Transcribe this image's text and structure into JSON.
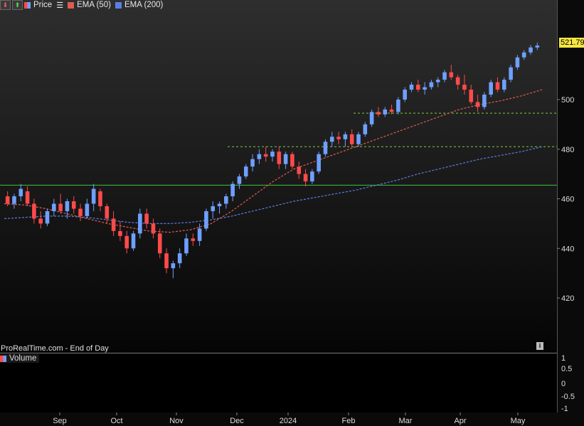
{
  "legend": {
    "price_label": "Price",
    "ema50_label": "EMA (50)",
    "ema200_label": "EMA (200)",
    "volume_label": "Volume"
  },
  "source_text": "ProRealTime.com - End of Day",
  "colors": {
    "up": "#6fa0ff",
    "down": "#ff4a4a",
    "ema50": "#e05a50",
    "ema200": "#5b7fe0",
    "support": "#7ccc3c",
    "resistance_green": "#3ec23e",
    "last_price_badge": "#f5e642"
  },
  "chart_data": {
    "type": "line",
    "subtype": "candlestick",
    "title": "",
    "x_tick_labels": [
      "Sep",
      "Oct",
      "Nov",
      "Dec",
      "2024",
      "Feb",
      "Mar",
      "Apr",
      "May"
    ],
    "y_tick_labels": [
      "420",
      "440",
      "460",
      "480",
      "500"
    ],
    "ylim": [
      415,
      530
    ],
    "last_price": "521.79",
    "volume_axis_labels": [
      "1",
      "0.5",
      "0",
      "-0.5",
      "-1"
    ],
    "horizontal_levels": [
      {
        "value": 465.5,
        "style": "solid",
        "start": "Aug",
        "end": "May"
      },
      {
        "value": 481,
        "style": "dashed",
        "start": "Dec",
        "end": "May"
      },
      {
        "value": 494.5,
        "style": "dashed",
        "start": "Feb",
        "end": "May"
      }
    ],
    "series": [
      {
        "name": "EMA (50)",
        "values": [
          458,
          457.5,
          456,
          454,
          452,
          450,
          448.5,
          447,
          446.5,
          447.5,
          450,
          455,
          461,
          467,
          472,
          475,
          478,
          481,
          484,
          487,
          490,
          493,
          496,
          498,
          499.5,
          501.5,
          504
        ]
      },
      {
        "name": "EMA (200)",
        "values": [
          452,
          452.5,
          453,
          453,
          452.5,
          451.5,
          450.5,
          450,
          450,
          450.5,
          451.5,
          453,
          455,
          457,
          459,
          460.5,
          462,
          463.5,
          465.5,
          467.5,
          470,
          472,
          474,
          476,
          477.5,
          479,
          481
        ]
      }
    ],
    "candles": [
      {
        "o": 461,
        "h": 463,
        "l": 457,
        "c": 458
      },
      {
        "o": 458,
        "h": 462,
        "l": 456,
        "c": 461
      },
      {
        "o": 461,
        "h": 466,
        "l": 459,
        "c": 464
      },
      {
        "o": 463,
        "h": 465,
        "l": 457,
        "c": 458
      },
      {
        "o": 458,
        "h": 460,
        "l": 450,
        "c": 452
      },
      {
        "o": 452,
        "h": 455,
        "l": 448,
        "c": 450
      },
      {
        "o": 450,
        "h": 456,
        "l": 449,
        "c": 455
      },
      {
        "o": 455,
        "h": 460,
        "l": 453,
        "c": 458
      },
      {
        "o": 458,
        "h": 462,
        "l": 454,
        "c": 455
      },
      {
        "o": 455,
        "h": 460,
        "l": 452,
        "c": 459
      },
      {
        "o": 459,
        "h": 461,
        "l": 454,
        "c": 456
      },
      {
        "o": 456,
        "h": 458,
        "l": 451,
        "c": 453
      },
      {
        "o": 453,
        "h": 460,
        "l": 452,
        "c": 458
      },
      {
        "o": 458,
        "h": 466,
        "l": 455,
        "c": 464
      },
      {
        "o": 463,
        "h": 464,
        "l": 455,
        "c": 457
      },
      {
        "o": 457,
        "h": 458,
        "l": 450,
        "c": 452
      },
      {
        "o": 452,
        "h": 455,
        "l": 445,
        "c": 447
      },
      {
        "o": 447,
        "h": 451,
        "l": 443,
        "c": 445
      },
      {
        "o": 445,
        "h": 447,
        "l": 438,
        "c": 440
      },
      {
        "o": 440,
        "h": 447,
        "l": 439,
        "c": 446
      },
      {
        "o": 446,
        "h": 456,
        "l": 444,
        "c": 454
      },
      {
        "o": 454,
        "h": 456,
        "l": 448,
        "c": 450
      },
      {
        "o": 450,
        "h": 452,
        "l": 444,
        "c": 446
      },
      {
        "o": 446,
        "h": 448,
        "l": 436,
        "c": 438
      },
      {
        "o": 438,
        "h": 440,
        "l": 430,
        "c": 432
      },
      {
        "o": 432,
        "h": 435,
        "l": 428,
        "c": 434
      },
      {
        "o": 434,
        "h": 440,
        "l": 432,
        "c": 438
      },
      {
        "o": 438,
        "h": 446,
        "l": 437,
        "c": 444
      },
      {
        "o": 444,
        "h": 446,
        "l": 441,
        "c": 443
      },
      {
        "o": 443,
        "h": 450,
        "l": 441,
        "c": 448
      },
      {
        "o": 448,
        "h": 456,
        "l": 447,
        "c": 455
      },
      {
        "o": 455,
        "h": 459,
        "l": 452,
        "c": 457
      },
      {
        "o": 457,
        "h": 459,
        "l": 454,
        "c": 458
      },
      {
        "o": 458,
        "h": 462,
        "l": 456,
        "c": 461
      },
      {
        "o": 461,
        "h": 467,
        "l": 459,
        "c": 466
      },
      {
        "o": 466,
        "h": 470,
        "l": 464,
        "c": 469
      },
      {
        "o": 469,
        "h": 474,
        "l": 468,
        "c": 473
      },
      {
        "o": 473,
        "h": 478,
        "l": 471,
        "c": 476
      },
      {
        "o": 476,
        "h": 480,
        "l": 474,
        "c": 478
      },
      {
        "o": 478,
        "h": 481,
        "l": 475,
        "c": 477
      },
      {
        "o": 477,
        "h": 480,
        "l": 475,
        "c": 479
      },
      {
        "o": 479,
        "h": 481,
        "l": 472,
        "c": 474
      },
      {
        "o": 474,
        "h": 479,
        "l": 472,
        "c": 478
      },
      {
        "o": 478,
        "h": 479,
        "l": 472,
        "c": 473
      },
      {
        "o": 473,
        "h": 475,
        "l": 468,
        "c": 470
      },
      {
        "o": 470,
        "h": 472,
        "l": 465,
        "c": 467
      },
      {
        "o": 467,
        "h": 472,
        "l": 466,
        "c": 471
      },
      {
        "o": 471,
        "h": 479,
        "l": 470,
        "c": 478
      },
      {
        "o": 478,
        "h": 484,
        "l": 477,
        "c": 483
      },
      {
        "o": 483,
        "h": 487,
        "l": 481,
        "c": 485
      },
      {
        "o": 485,
        "h": 487,
        "l": 482,
        "c": 484
      },
      {
        "o": 484,
        "h": 487,
        "l": 481,
        "c": 486
      },
      {
        "o": 486,
        "h": 488,
        "l": 481,
        "c": 482
      },
      {
        "o": 482,
        "h": 487,
        "l": 481,
        "c": 486
      },
      {
        "o": 486,
        "h": 491,
        "l": 485,
        "c": 490
      },
      {
        "o": 490,
        "h": 496,
        "l": 489,
        "c": 495
      },
      {
        "o": 495,
        "h": 497,
        "l": 493,
        "c": 494
      },
      {
        "o": 494,
        "h": 497,
        "l": 493,
        "c": 496
      },
      {
        "o": 496,
        "h": 498,
        "l": 494,
        "c": 495
      },
      {
        "o": 495,
        "h": 501,
        "l": 494,
        "c": 500
      },
      {
        "o": 500,
        "h": 505,
        "l": 499,
        "c": 504
      },
      {
        "o": 504,
        "h": 507,
        "l": 503,
        "c": 506
      },
      {
        "o": 506,
        "h": 508,
        "l": 503,
        "c": 504
      },
      {
        "o": 504,
        "h": 507,
        "l": 502,
        "c": 505
      },
      {
        "o": 505,
        "h": 508,
        "l": 504,
        "c": 507
      },
      {
        "o": 507,
        "h": 509,
        "l": 505,
        "c": 508
      },
      {
        "o": 508,
        "h": 512,
        "l": 507,
        "c": 511
      },
      {
        "o": 511,
        "h": 514,
        "l": 508,
        "c": 509
      },
      {
        "o": 509,
        "h": 510,
        "l": 504,
        "c": 506
      },
      {
        "o": 506,
        "h": 510,
        "l": 502,
        "c": 504
      },
      {
        "o": 504,
        "h": 506,
        "l": 498,
        "c": 499
      },
      {
        "o": 499,
        "h": 502,
        "l": 495,
        "c": 497
      },
      {
        "o": 497,
        "h": 503,
        "l": 496,
        "c": 502
      },
      {
        "o": 502,
        "h": 508,
        "l": 501,
        "c": 507
      },
      {
        "o": 507,
        "h": 509,
        "l": 503,
        "c": 504
      },
      {
        "o": 504,
        "h": 509,
        "l": 503,
        "c": 508
      },
      {
        "o": 508,
        "h": 514,
        "l": 507,
        "c": 513
      },
      {
        "o": 513,
        "h": 518,
        "l": 512,
        "c": 517
      },
      {
        "o": 517,
        "h": 520,
        "l": 516,
        "c": 519
      },
      {
        "o": 519,
        "h": 522,
        "l": 518,
        "c": 521
      },
      {
        "o": 521,
        "h": 523,
        "l": 520,
        "c": 521.79
      }
    ]
  }
}
